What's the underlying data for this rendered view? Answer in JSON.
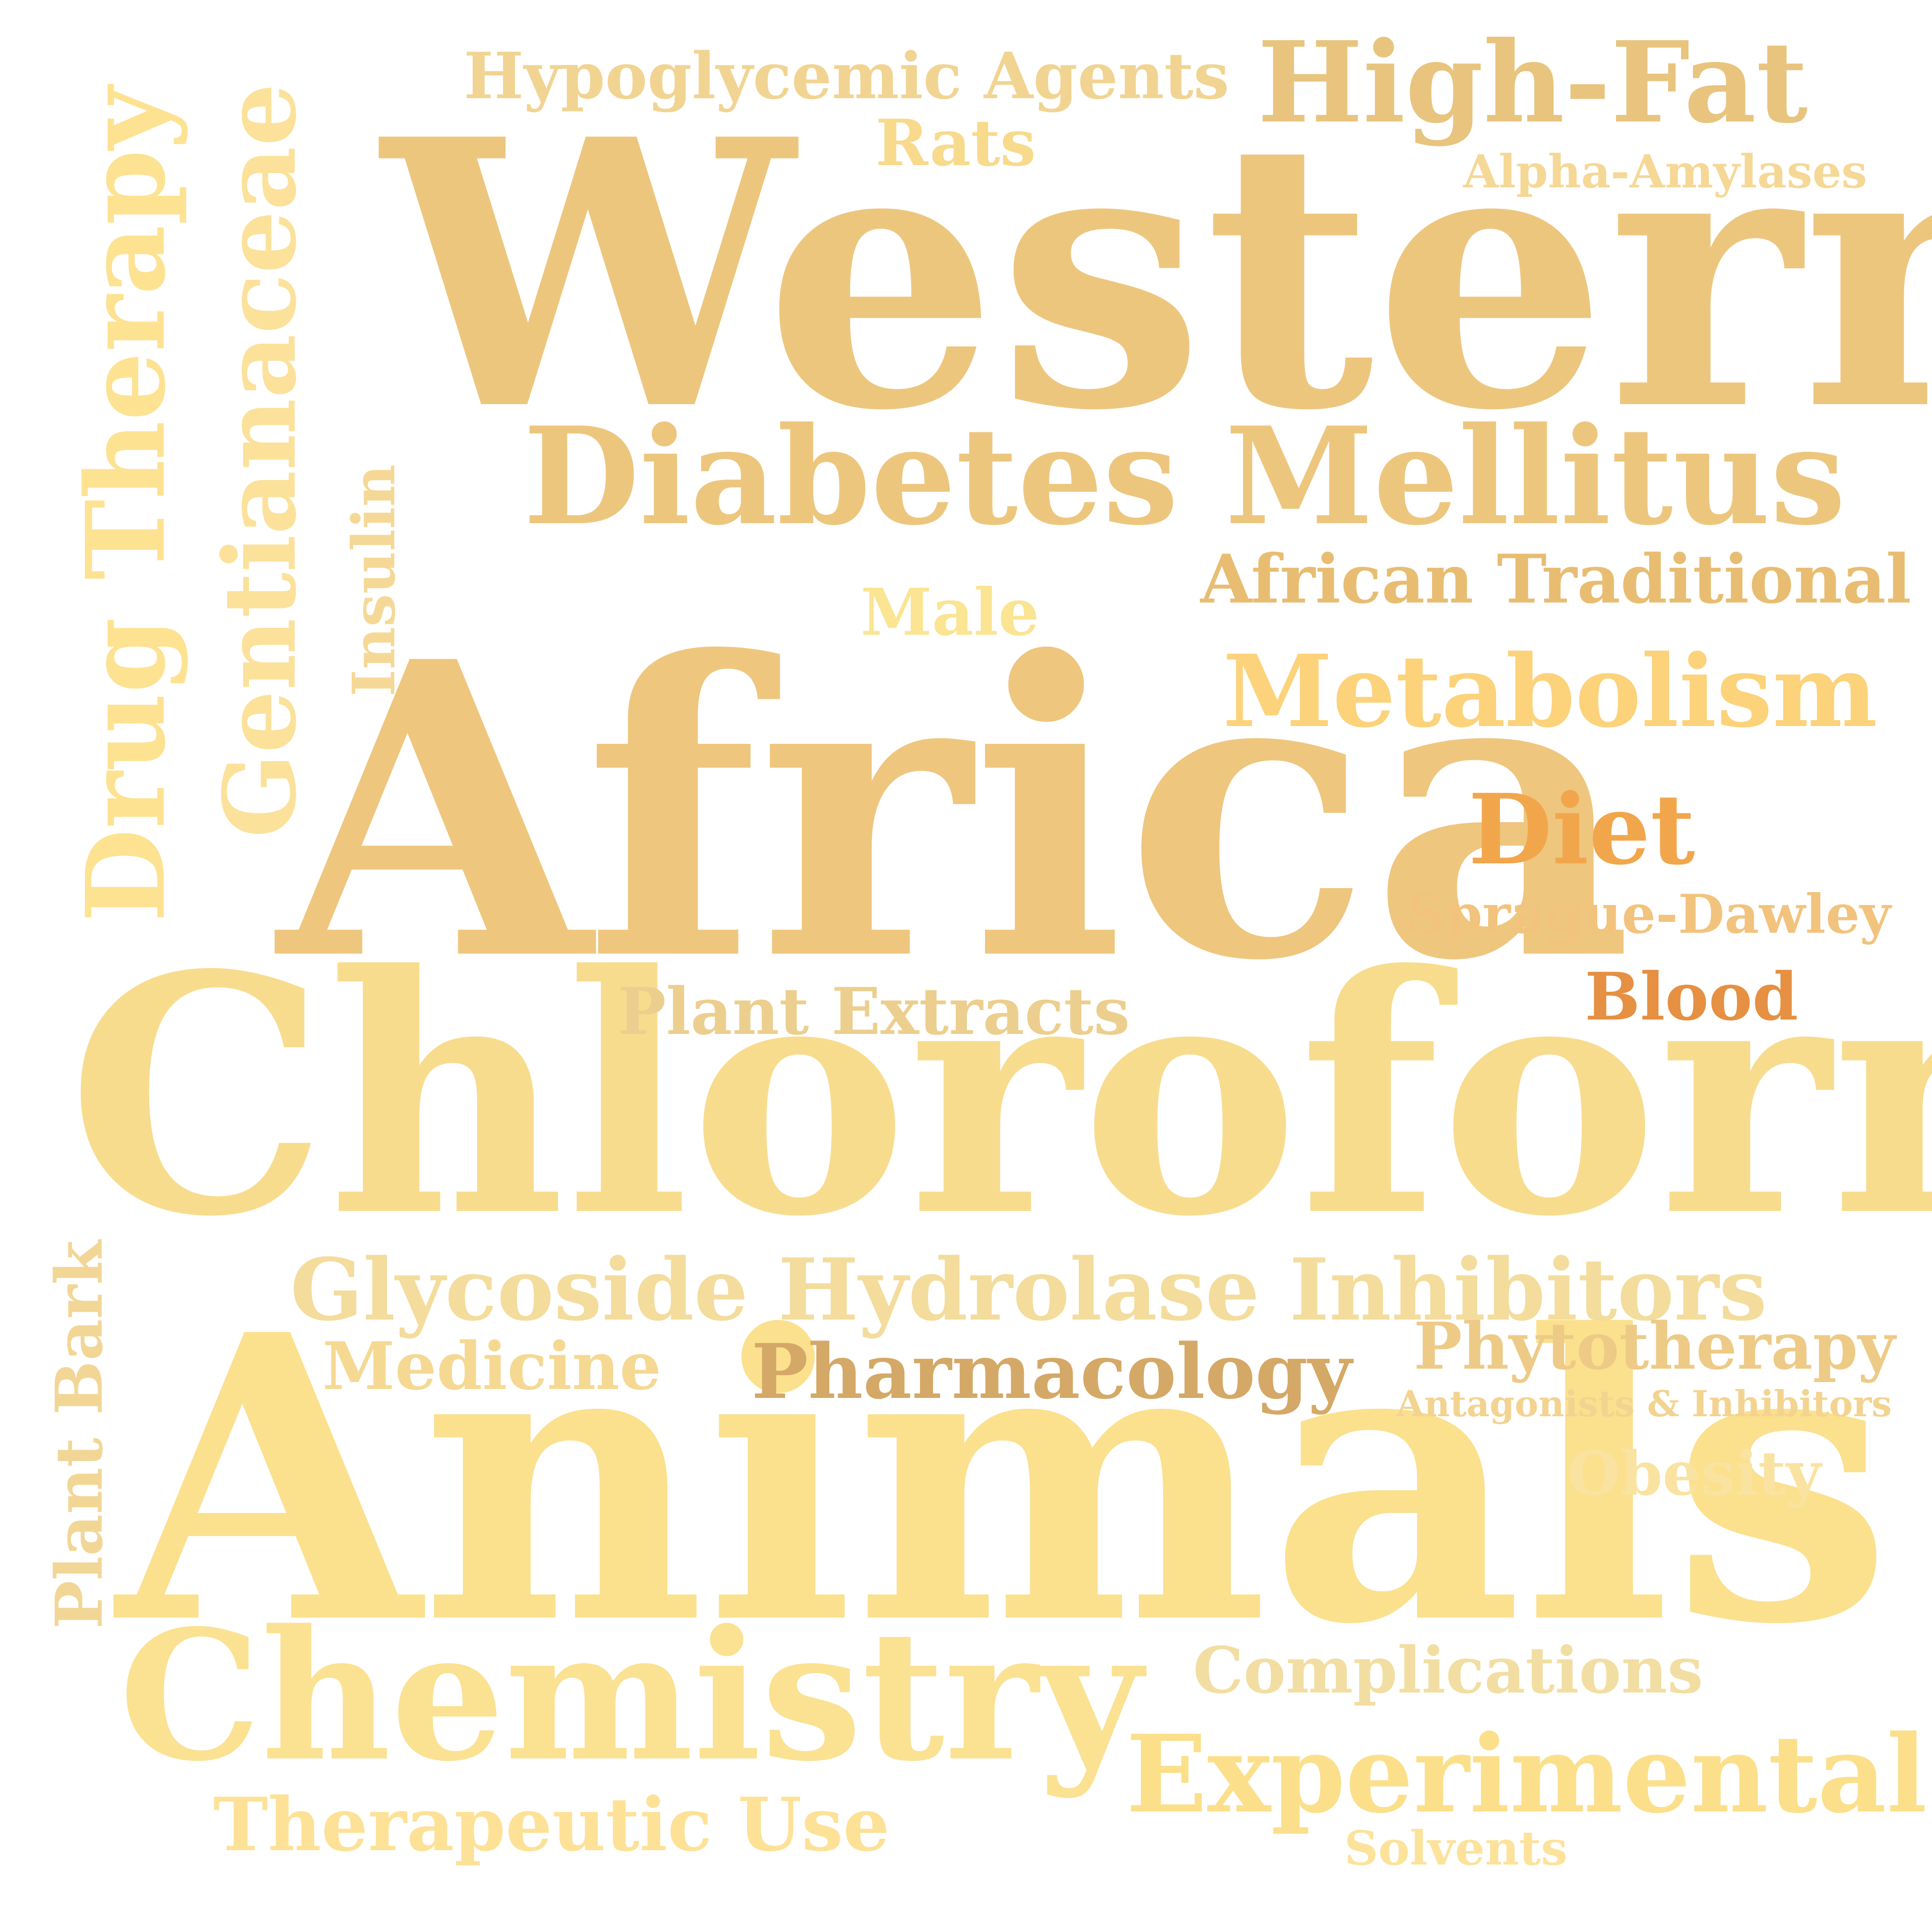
{
  "word_cloud": {
    "words": [
      {
        "text": "Western",
        "color": "#EDC67E"
      },
      {
        "text": "Africa",
        "color": "#EEC67E"
      },
      {
        "text": "Chloroform",
        "color": "#F8DC8E"
      },
      {
        "text": "Animals",
        "color": "#FBE08E"
      },
      {
        "text": "Chemistry",
        "color": "#FBE192"
      },
      {
        "text": "Diabetes Mellitus",
        "color": "#EDC67E"
      },
      {
        "text": "High-Fat",
        "color": "#E8C47E"
      },
      {
        "text": "Hypoglycemic Agents",
        "color": "#F1D492"
      },
      {
        "text": "Rats",
        "color": "#F8DA8C"
      },
      {
        "text": "Alpha-Amylases",
        "color": "#F5D896"
      },
      {
        "text": "African Traditional",
        "color": "#E8BD72"
      },
      {
        "text": "Male",
        "color": "#FBE492"
      },
      {
        "text": "Metabolism",
        "color": "#FCD27A"
      },
      {
        "text": "Diet",
        "color": "#F2A64C"
      },
      {
        "text": "Sprague-Dawley",
        "color": "#F2C37D"
      },
      {
        "text": "Blood",
        "color": "#E59042"
      },
      {
        "text": "Plant Extracts",
        "color": "#ECCF8E"
      },
      {
        "text": "Glycoside Hydrolase Inhibitors",
        "color": "#F3DC9C"
      },
      {
        "text": "Medicine",
        "color": "#F5D892"
      },
      {
        "text": "Pharmacology",
        "color": "#D4A866"
      },
      {
        "text": "Phytotherapy",
        "color": "#EDCA86"
      },
      {
        "text": "Antagonists & Inhibitors",
        "color": "#F3D390"
      },
      {
        "text": "Obesity",
        "color": "#FAE3A0"
      },
      {
        "text": "Complications",
        "color": "#F2DEA2"
      },
      {
        "text": "Experimental",
        "color": "#FCDF8A"
      },
      {
        "text": "Therapeutic Use",
        "color": "#FDE196"
      },
      {
        "text": "Solvents",
        "color": "#FCE29A"
      },
      {
        "text": "Drug Therapy",
        "color": "#FDE292"
      },
      {
        "text": "Gentianaceae",
        "color": "#FBE19A"
      },
      {
        "text": "Insulin",
        "color": "#F6D896"
      },
      {
        "text": "Plant Bark",
        "color": "#F2D696"
      }
    ]
  }
}
